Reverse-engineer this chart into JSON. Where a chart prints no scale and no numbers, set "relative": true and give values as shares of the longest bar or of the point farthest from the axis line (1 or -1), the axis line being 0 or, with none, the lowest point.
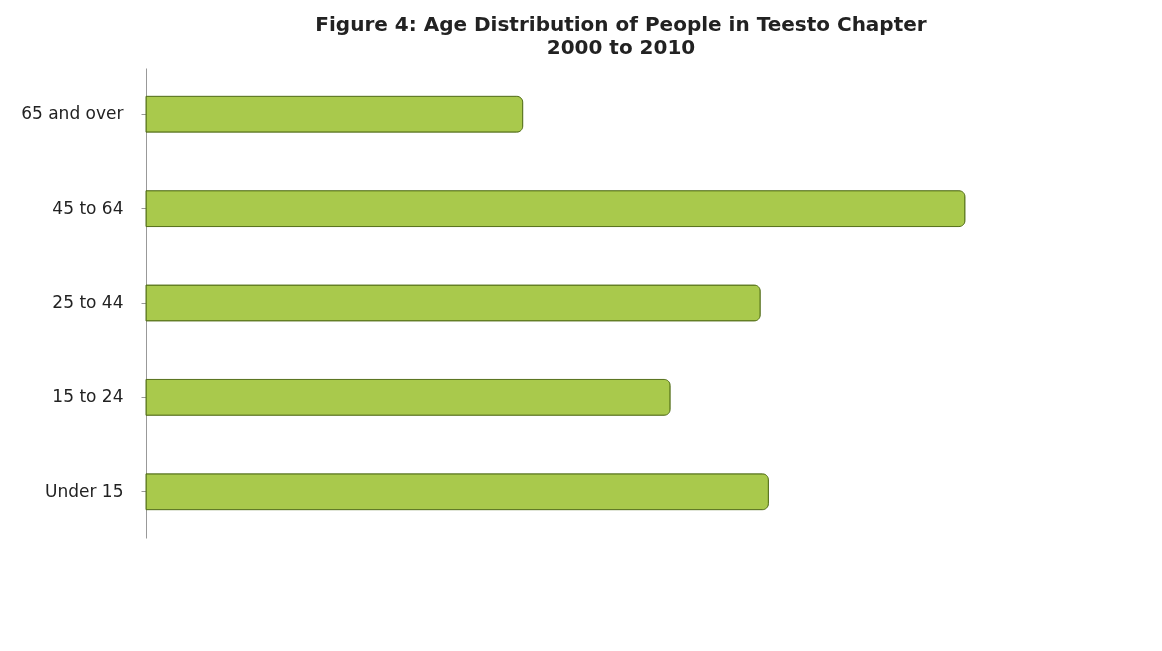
{
  "chart_data": {
    "type": "bar",
    "orientation": "horizontal",
    "relative": true,
    "title": "Figure 4:  Age Distribution of People in Teesto Chapter",
    "subtitle": "2000 to 2010",
    "categories": [
      "65 and over",
      "45 to 64",
      "25 to 44",
      "15 to 24",
      "Under 15"
    ],
    "values": [
      0.46,
      1,
      0.75,
      0.64,
      0.76
    ],
    "color": "#a9c94c"
  }
}
